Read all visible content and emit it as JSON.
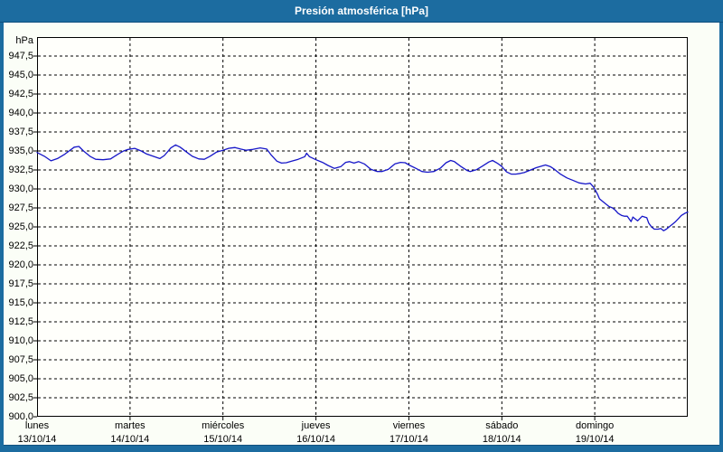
{
  "window": {
    "title": "Presión atmosférica [hPa]",
    "colors": {
      "frame": "#1C6CA0",
      "titlebar_text": "#FFFFFF",
      "content_bg": "#FBFEF7",
      "plot_bg": "#FFFFFB",
      "grid": "#000000",
      "line": "#1616C8"
    }
  },
  "chart_data": {
    "type": "line",
    "title": "Presión atmosférica [hPa]",
    "ylabel_unit": "hPa",
    "ylim": [
      900,
      950
    ],
    "ytick_step": 2.5,
    "grid": "dashed",
    "legend": "none",
    "ytick_labels": [
      "947,5",
      "945,0",
      "942,5",
      "940,0",
      "937,5",
      "935,0",
      "932,5",
      "930,0",
      "927,5",
      "925,0",
      "922,5",
      "920,0",
      "917,5",
      "915,0",
      "912,5",
      "910,0",
      "907,5",
      "905,0",
      "902,5",
      "900,0"
    ],
    "x_categories": [
      {
        "day": "lunes",
        "date": "13/10/14"
      },
      {
        "day": "martes",
        "date": "14/10/14"
      },
      {
        "day": "miércoles",
        "date": "15/10/14"
      },
      {
        "day": "jueves",
        "date": "16/10/14"
      },
      {
        "day": "viernes",
        "date": "17/10/14"
      },
      {
        "day": "sábado",
        "date": "18/10/14"
      },
      {
        "day": "domingo",
        "date": "19/10/14"
      }
    ],
    "x_range_days": [
      0,
      7
    ],
    "series": [
      {
        "name": "Presión atmosférica",
        "color": "#1616C8",
        "points": [
          [
            0.0,
            934.8
          ],
          [
            0.08,
            934.3
          ],
          [
            0.15,
            933.7
          ],
          [
            0.22,
            934.0
          ],
          [
            0.3,
            934.6
          ],
          [
            0.4,
            935.5
          ],
          [
            0.45,
            935.6
          ],
          [
            0.5,
            935.0
          ],
          [
            0.57,
            934.3
          ],
          [
            0.63,
            933.9
          ],
          [
            0.71,
            933.85
          ],
          [
            0.79,
            933.95
          ],
          [
            0.86,
            934.5
          ],
          [
            0.93,
            935.0
          ],
          [
            0.98,
            935.2
          ],
          [
            1.05,
            935.35
          ],
          [
            1.12,
            935.0
          ],
          [
            1.18,
            934.6
          ],
          [
            1.25,
            934.3
          ],
          [
            1.32,
            934.0
          ],
          [
            1.37,
            934.4
          ],
          [
            1.44,
            935.4
          ],
          [
            1.49,
            935.8
          ],
          [
            1.54,
            935.5
          ],
          [
            1.61,
            934.85
          ],
          [
            1.67,
            934.3
          ],
          [
            1.74,
            933.95
          ],
          [
            1.8,
            933.9
          ],
          [
            1.86,
            934.3
          ],
          [
            1.93,
            934.85
          ],
          [
            2.0,
            935.1
          ],
          [
            2.06,
            935.35
          ],
          [
            2.13,
            935.45
          ],
          [
            2.19,
            935.25
          ],
          [
            2.25,
            935.1
          ],
          [
            2.32,
            935.2
          ],
          [
            2.4,
            935.4
          ],
          [
            2.47,
            935.25
          ],
          [
            2.52,
            934.45
          ],
          [
            2.58,
            933.65
          ],
          [
            2.63,
            933.4
          ],
          [
            2.68,
            933.45
          ],
          [
            2.74,
            933.65
          ],
          [
            2.81,
            933.9
          ],
          [
            2.88,
            934.25
          ],
          [
            2.9,
            934.7
          ],
          [
            2.93,
            934.25
          ],
          [
            3.0,
            933.85
          ],
          [
            3.07,
            933.5
          ],
          [
            3.13,
            933.1
          ],
          [
            3.2,
            932.7
          ],
          [
            3.27,
            932.95
          ],
          [
            3.32,
            933.5
          ],
          [
            3.36,
            933.6
          ],
          [
            3.41,
            933.4
          ],
          [
            3.46,
            933.6
          ],
          [
            3.52,
            933.3
          ],
          [
            3.59,
            932.6
          ],
          [
            3.66,
            932.3
          ],
          [
            3.71,
            932.3
          ],
          [
            3.78,
            932.6
          ],
          [
            3.85,
            933.3
          ],
          [
            3.91,
            933.5
          ],
          [
            3.96,
            933.45
          ],
          [
            4.01,
            933.1
          ],
          [
            4.07,
            932.75
          ],
          [
            4.14,
            932.3
          ],
          [
            4.2,
            932.2
          ],
          [
            4.27,
            932.3
          ],
          [
            4.34,
            932.75
          ],
          [
            4.4,
            933.45
          ],
          [
            4.45,
            933.75
          ],
          [
            4.49,
            933.6
          ],
          [
            4.56,
            932.95
          ],
          [
            4.63,
            932.4
          ],
          [
            4.66,
            932.3
          ],
          [
            4.73,
            932.55
          ],
          [
            4.79,
            933.0
          ],
          [
            4.86,
            933.55
          ],
          [
            4.9,
            933.75
          ],
          [
            4.95,
            933.4
          ],
          [
            5.0,
            932.95
          ],
          [
            5.05,
            932.25
          ],
          [
            5.1,
            931.95
          ],
          [
            5.15,
            931.95
          ],
          [
            5.2,
            932.05
          ],
          [
            5.24,
            932.15
          ],
          [
            5.31,
            932.5
          ],
          [
            5.37,
            932.8
          ],
          [
            5.44,
            933.05
          ],
          [
            5.47,
            933.15
          ],
          [
            5.52,
            932.95
          ],
          [
            5.57,
            932.55
          ],
          [
            5.63,
            931.95
          ],
          [
            5.7,
            931.45
          ],
          [
            5.76,
            931.15
          ],
          [
            5.83,
            930.8
          ],
          [
            5.9,
            930.65
          ],
          [
            5.95,
            930.75
          ],
          [
            5.99,
            930.2
          ],
          [
            6.03,
            929.3
          ],
          [
            6.05,
            928.7
          ],
          [
            6.09,
            928.3
          ],
          [
            6.12,
            928.0
          ],
          [
            6.15,
            927.7
          ],
          [
            6.19,
            927.5
          ],
          [
            6.22,
            927.2
          ],
          [
            6.25,
            926.8
          ],
          [
            6.29,
            926.5
          ],
          [
            6.32,
            926.4
          ],
          [
            6.35,
            926.4
          ],
          [
            6.39,
            925.7
          ],
          [
            6.41,
            926.3
          ],
          [
            6.46,
            925.8
          ],
          [
            6.51,
            926.4
          ],
          [
            6.56,
            926.2
          ],
          [
            6.58,
            925.5
          ],
          [
            6.61,
            925.0
          ],
          [
            6.64,
            924.7
          ],
          [
            6.68,
            924.7
          ],
          [
            6.71,
            924.8
          ],
          [
            6.74,
            924.5
          ],
          [
            6.77,
            924.7
          ],
          [
            6.8,
            925.0
          ],
          [
            6.83,
            925.3
          ],
          [
            6.87,
            925.7
          ],
          [
            6.9,
            926.1
          ],
          [
            6.93,
            926.5
          ],
          [
            6.97,
            926.8
          ],
          [
            7.0,
            926.95
          ]
        ]
      }
    ]
  }
}
